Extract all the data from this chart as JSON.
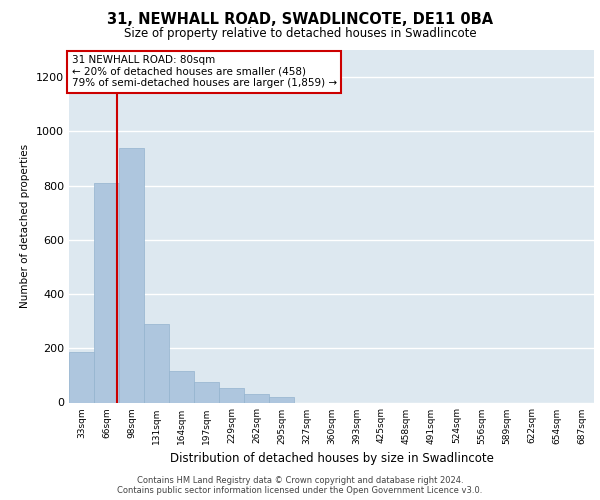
{
  "title": "31, NEWHALL ROAD, SWADLINCOTE, DE11 0BA",
  "subtitle": "Size of property relative to detached houses in Swadlincote",
  "xlabel": "Distribution of detached houses by size in Swadlincote",
  "ylabel": "Number of detached properties",
  "bar_color": "#aec6de",
  "bar_edge_color": "#93b3ce",
  "background_color": "#dde8f0",
  "categories": [
    "33sqm",
    "66sqm",
    "98sqm",
    "131sqm",
    "164sqm",
    "197sqm",
    "229sqm",
    "262sqm",
    "295sqm",
    "327sqm",
    "360sqm",
    "393sqm",
    "425sqm",
    "458sqm",
    "491sqm",
    "524sqm",
    "556sqm",
    "589sqm",
    "622sqm",
    "654sqm",
    "687sqm"
  ],
  "values": [
    185,
    810,
    940,
    290,
    115,
    75,
    55,
    30,
    20,
    0,
    0,
    0,
    0,
    0,
    0,
    0,
    0,
    0,
    0,
    0,
    0
  ],
  "ylim": [
    0,
    1300
  ],
  "yticks": [
    0,
    200,
    400,
    600,
    800,
    1000,
    1200
  ],
  "annotation_line1": "31 NEWHALL ROAD: 80sqm",
  "annotation_line2": "← 20% of detached houses are smaller (458)",
  "annotation_line3": "79% of semi-detached houses are larger (1,859) →",
  "footer_line1": "Contains HM Land Registry data © Crown copyright and database right 2024.",
  "footer_line2": "Contains public sector information licensed under the Open Government Licence v3.0."
}
